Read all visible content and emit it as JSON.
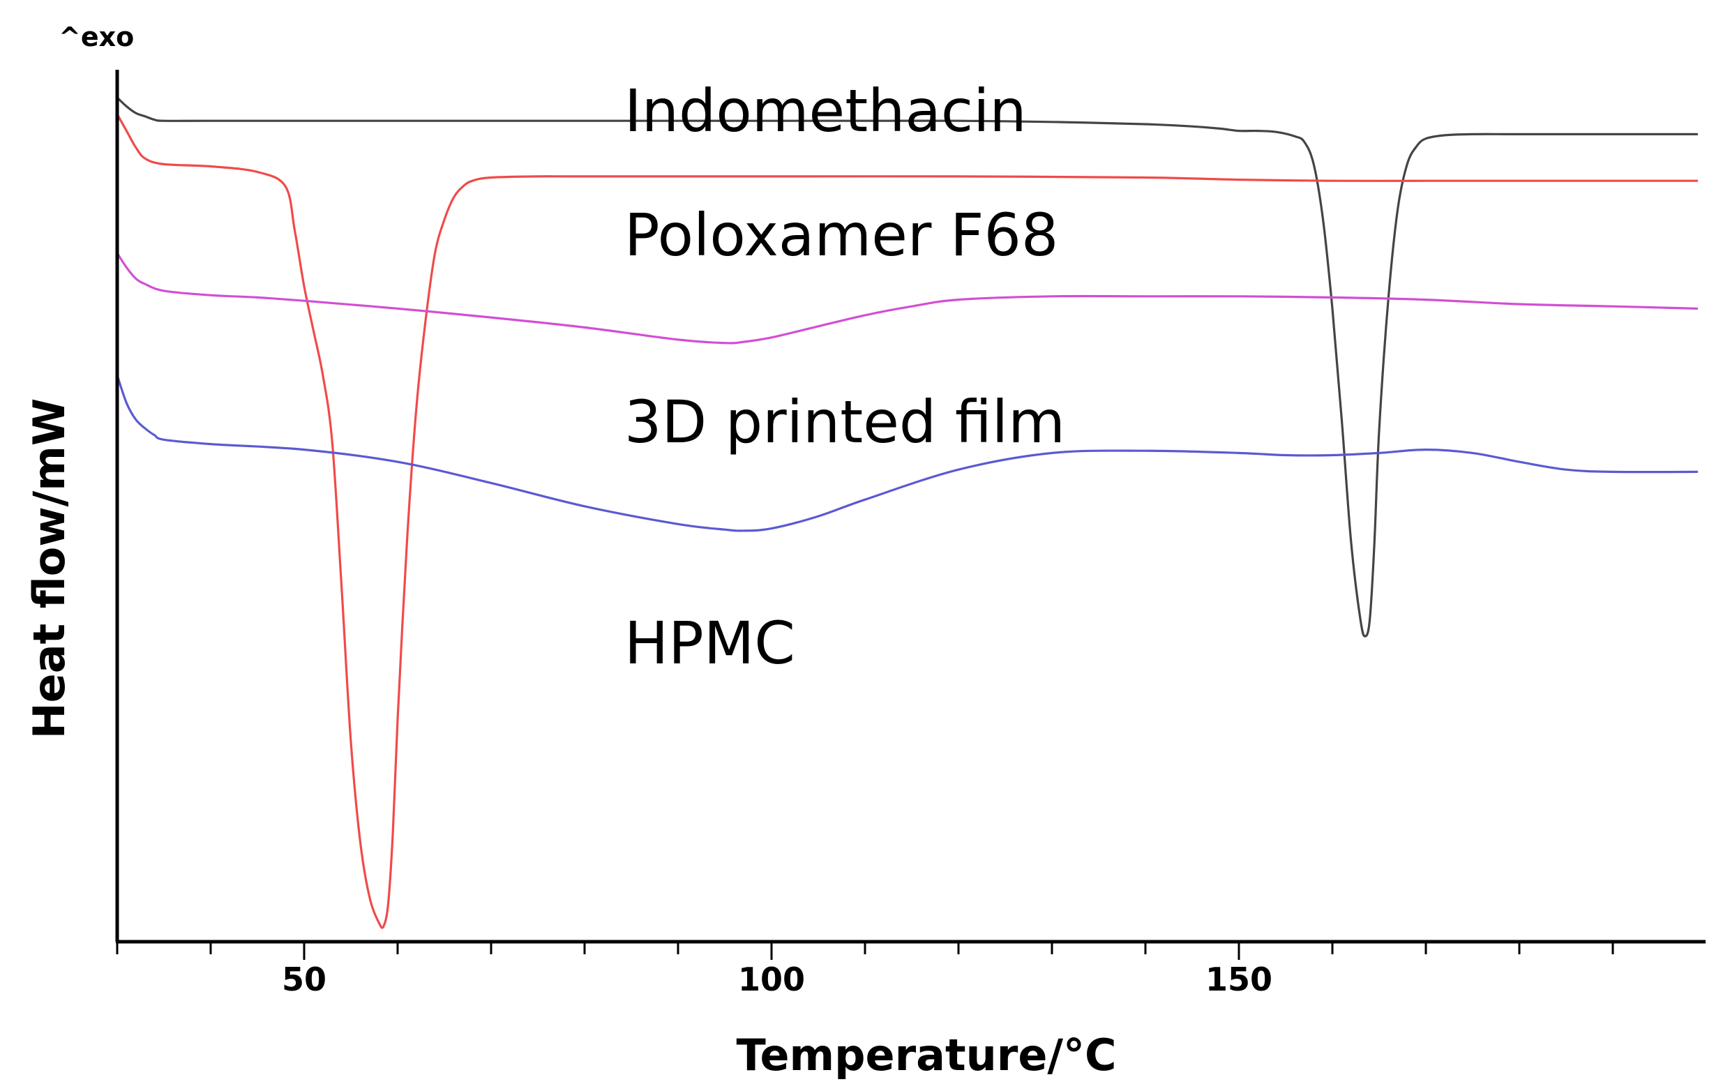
{
  "chart_data": {
    "type": "line",
    "title": "",
    "xlabel": "Temperature/°C",
    "ylabel": "Heat flow/mW",
    "y_direction_note": "^exo",
    "xlim": [
      30,
      199
    ],
    "ylim": [
      -5.2,
      2.65
    ],
    "x_ticks_major": [
      50,
      100,
      150
    ],
    "x_ticks_minor": [
      30,
      40,
      60,
      70,
      80,
      90,
      110,
      120,
      130,
      140,
      160,
      170,
      180,
      190
    ],
    "y_ticks_shown": false,
    "grid": false,
    "legend": "inline labels",
    "series": [
      {
        "name": "Indomethacin",
        "color": "#444444",
        "x": [
          30,
          31,
          32,
          33,
          34,
          35,
          40,
          50,
          60,
          70,
          80,
          90,
          100,
          110,
          120,
          130,
          140,
          145,
          148,
          150,
          152,
          154,
          156,
          157,
          158,
          159,
          160,
          161,
          162,
          163,
          163.5,
          164,
          164.5,
          165,
          166,
          167,
          168,
          169,
          170,
          172,
          175,
          180,
          190,
          199
        ],
        "y": [
          2.4,
          2.32,
          2.26,
          2.23,
          2.2,
          2.19,
          2.19,
          2.19,
          2.19,
          2.19,
          2.19,
          2.19,
          2.19,
          2.19,
          2.19,
          2.18,
          2.16,
          2.14,
          2.12,
          2.1,
          2.1,
          2.09,
          2.05,
          2.0,
          1.8,
          1.3,
          0.5,
          -0.5,
          -1.6,
          -2.3,
          -2.45,
          -2.3,
          -1.6,
          -0.6,
          0.6,
          1.4,
          1.8,
          1.96,
          2.03,
          2.06,
          2.07,
          2.07,
          2.07,
          2.07
        ]
      },
      {
        "name": "Poloxamer F68",
        "color": "#f04a4a",
        "x": [
          30,
          31,
          32,
          33,
          35,
          40,
          45,
          48,
          49,
          50,
          51,
          52,
          53,
          54,
          55,
          56,
          57,
          58,
          58.5,
          59,
          59.5,
          60,
          61,
          62,
          63,
          64,
          65,
          66,
          67,
          68,
          70,
          75,
          80,
          100,
          120,
          140,
          150,
          160,
          170,
          180,
          199
        ],
        "y": [
          2.25,
          2.1,
          1.95,
          1.85,
          1.8,
          1.78,
          1.73,
          1.6,
          1.2,
          0.7,
          0.3,
          -0.1,
          -0.7,
          -2.0,
          -3.4,
          -4.3,
          -4.8,
          -5.03,
          -5.06,
          -4.85,
          -4.2,
          -3.2,
          -1.6,
          -0.4,
          0.4,
          1.0,
          1.3,
          1.5,
          1.6,
          1.65,
          1.68,
          1.69,
          1.69,
          1.69,
          1.69,
          1.68,
          1.66,
          1.65,
          1.65,
          1.65,
          1.65
        ]
      },
      {
        "name": "3D printed film",
        "color": "#d24ed4",
        "x": [
          30,
          31,
          32,
          33,
          35,
          40,
          45,
          50,
          60,
          70,
          80,
          90,
          95,
          97,
          100,
          105,
          110,
          115,
          120,
          130,
          140,
          150,
          160,
          170,
          180,
          190,
          199
        ],
        "y": [
          1.0,
          0.87,
          0.77,
          0.72,
          0.66,
          0.62,
          0.6,
          0.57,
          0.5,
          0.42,
          0.33,
          0.22,
          0.19,
          0.2,
          0.24,
          0.34,
          0.44,
          0.52,
          0.58,
          0.61,
          0.61,
          0.61,
          0.6,
          0.58,
          0.54,
          0.52,
          0.5
        ]
      },
      {
        "name": "HPMC",
        "color": "#5a5ad2",
        "x": [
          30,
          31,
          32,
          33,
          34,
          35,
          40,
          50,
          60,
          70,
          80,
          90,
          95,
          97,
          100,
          105,
          110,
          120,
          130,
          140,
          150,
          155,
          160,
          165,
          170,
          175,
          180,
          185,
          190,
          199
        ],
        "y": [
          -0.1,
          -0.35,
          -0.5,
          -0.58,
          -0.64,
          -0.68,
          -0.72,
          -0.77,
          -0.88,
          -1.07,
          -1.28,
          -1.44,
          -1.49,
          -1.5,
          -1.48,
          -1.37,
          -1.22,
          -0.95,
          -0.8,
          -0.78,
          -0.8,
          -0.82,
          -0.82,
          -0.8,
          -0.77,
          -0.8,
          -0.88,
          -0.95,
          -0.97,
          -0.97
        ]
      }
    ]
  }
}
